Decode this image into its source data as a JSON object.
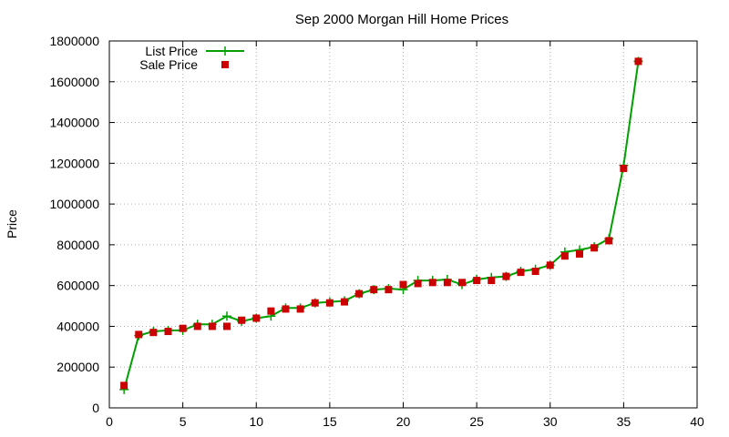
{
  "chart_data": {
    "type": "line",
    "title": "Sep 2000 Morgan Hill Home Prices",
    "xlabel": "",
    "ylabel": "Price",
    "xlim": [
      0,
      40
    ],
    "ylim": [
      0,
      1800000
    ],
    "xticks": [
      0,
      5,
      10,
      15,
      20,
      25,
      30,
      35,
      40
    ],
    "yticks": [
      0,
      200000,
      400000,
      600000,
      800000,
      1000000,
      1200000,
      1400000,
      1600000,
      1800000
    ],
    "grid": true,
    "legend_position": "top-left",
    "x": [
      1,
      2,
      3,
      4,
      5,
      6,
      7,
      8,
      9,
      10,
      11,
      12,
      13,
      14,
      15,
      16,
      17,
      18,
      19,
      20,
      21,
      22,
      23,
      24,
      25,
      26,
      27,
      28,
      29,
      30,
      31,
      32,
      33,
      34,
      35,
      36
    ],
    "series": [
      {
        "name": "List Price",
        "style": "line-cross",
        "color": "#00a000",
        "values": [
          90000,
          355000,
          375000,
          380000,
          380000,
          410000,
          410000,
          450000,
          425000,
          440000,
          450000,
          490000,
          490000,
          515000,
          520000,
          525000,
          560000,
          580000,
          585000,
          580000,
          625000,
          625000,
          630000,
          605000,
          630000,
          640000,
          645000,
          670000,
          680000,
          700000,
          765000,
          775000,
          790000,
          830000,
          1190000,
          1700000
        ]
      },
      {
        "name": "Sale Price",
        "style": "square-points",
        "color": "#cc0000",
        "values": [
          110000,
          360000,
          370000,
          375000,
          390000,
          400000,
          400000,
          400000,
          430000,
          440000,
          475000,
          485000,
          485000,
          515000,
          515000,
          520000,
          560000,
          580000,
          580000,
          605000,
          610000,
          615000,
          615000,
          615000,
          625000,
          625000,
          645000,
          665000,
          670000,
          700000,
          745000,
          755000,
          785000,
          820000,
          1175000,
          1700000
        ]
      }
    ]
  }
}
